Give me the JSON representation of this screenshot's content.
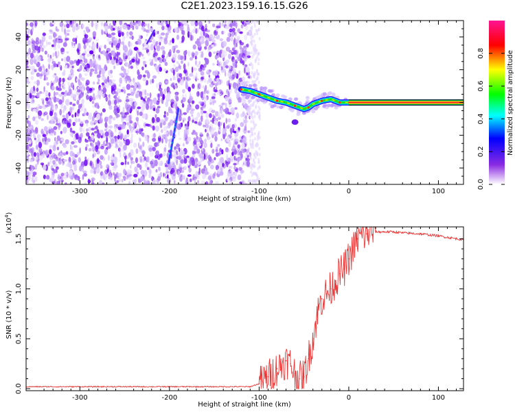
{
  "title": "C2E1.2023.159.16.15.G26",
  "chart_data": [
    {
      "type": "heatmap",
      "xlabel": "Height of straight line (km)",
      "ylabel": "Frequency (Hz)",
      "xlim": [
        -360,
        128
      ],
      "ylim": [
        -50,
        50
      ],
      "xticks": [
        -300,
        -200,
        -100,
        0,
        100
      ],
      "yticks": [
        -40,
        -20,
        0,
        20,
        40
      ],
      "colorbar": {
        "label": "Normalized spectral amplitude",
        "range": [
          0,
          1
        ],
        "ticks": [
          "0.0",
          "0.2",
          "0.4",
          "0.6",
          "0.8"
        ],
        "colors": [
          "#ffffff",
          "#8a2be2",
          "#0000ff",
          "#00ffff",
          "#00ff00",
          "#ffff00",
          "#ff0000",
          "#ff1493"
        ]
      },
      "features": {
        "noise_region_x": [
          -360,
          -110
        ],
        "tone_points": [
          {
            "x": -120,
            "y": 8
          },
          {
            "x": -110,
            "y": 7
          },
          {
            "x": -100,
            "y": 5
          },
          {
            "x": -90,
            "y": 3
          },
          {
            "x": -80,
            "y": 1
          },
          {
            "x": -70,
            "y": 0
          },
          {
            "x": -60,
            "y": -2
          },
          {
            "x": -50,
            "y": -4
          },
          {
            "x": -45,
            "y": -3
          },
          {
            "x": -40,
            "y": -1
          },
          {
            "x": -30,
            "y": 1
          },
          {
            "x": -20,
            "y": 2
          },
          {
            "x": -10,
            "y": 0
          },
          {
            "x": 0,
            "y": 0
          },
          {
            "x": 128,
            "y": 0
          }
        ],
        "streak": {
          "x": [
            -201,
            -190
          ],
          "y": [
            -37,
            -4
          ]
        }
      }
    },
    {
      "type": "line",
      "xlabel": "Height of straight line (km)",
      "ylabel": "SNR (10 * v/v)",
      "y_multiplier_label": "(x10",
      "y_multiplier_exp": "4",
      "xlim": [
        -360,
        128
      ],
      "ylim": [
        -0.02,
        1.62
      ],
      "xticks": [
        -300,
        -200,
        -100,
        0,
        100
      ],
      "yticks": [
        "0.0",
        "0.5",
        "1.0",
        "1.5"
      ],
      "color": "#ee3333",
      "series": [
        {
          "x": [
            -360,
            -300,
            -200,
            -110,
            -100,
            -90,
            -80,
            -70,
            -65,
            -60,
            -55,
            -50,
            -45,
            -40,
            -35,
            -30,
            -25,
            -20,
            -15,
            -10,
            -5,
            0,
            10,
            20,
            30,
            40,
            50,
            60,
            80,
            100,
            128
          ],
          "values": [
            0.02,
            0.02,
            0.02,
            0.02,
            0.05,
            0.12,
            0.2,
            0.28,
            0.25,
            0.15,
            0.1,
            0.12,
            0.3,
            0.5,
            0.75,
            0.9,
            0.95,
            1.0,
            1.08,
            1.15,
            1.2,
            1.3,
            1.5,
            1.55,
            1.57,
            1.57,
            1.57,
            1.56,
            1.55,
            1.53,
            1.49
          ]
        }
      ]
    }
  ]
}
